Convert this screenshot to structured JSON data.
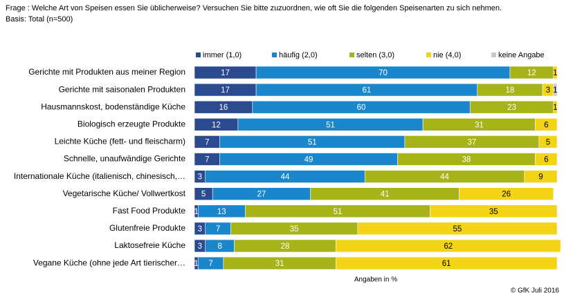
{
  "chart_data": {
    "type": "bar",
    "orientation": "horizontal",
    "stacked": true,
    "title": "Frage : Welche Art von Speisen essen Sie üblicherweise? Versuchen Sie bitte zuzuordnen, wie oft Sie die folgenden Speisenarten zu sich nehmen.",
    "subtitle": "Basis: Total (n=500)",
    "x_label": "Angaben in %",
    "source": "© GfK Juli 2016",
    "xlim": [
      0,
      100
    ],
    "categories": [
      "Gerichte mit Produkten aus meiner Region",
      "Gerichte mit saisonalen Produkten",
      "Hausmannskost, bodenständige Küche",
      "Biologisch erzeugte Produkte",
      "Leichte Küche (fett- und fleischarm)",
      "Schnelle, unaufwändige Gerichte",
      "Internationale Küche (italienisch, chinesisch,…",
      "Vegetarische Küche/ Vollwertkost",
      "Fast Food Produkte",
      "Glutenfreie Produkte",
      "Laktosefreie Küche",
      "Vegane Küche (ohne jede Art tierischer…"
    ],
    "series": [
      {
        "name": "immer (1,0)",
        "color": "#2b4a8f",
        "values": [
          17,
          17,
          16,
          12,
          7,
          7,
          3,
          5,
          1,
          3,
          3,
          1
        ]
      },
      {
        "name": "häufig (2,0)",
        "color": "#1a87cc",
        "values": [
          70,
          61,
          60,
          51,
          51,
          49,
          44,
          27,
          13,
          7,
          8,
          7
        ]
      },
      {
        "name": "selten (3,0)",
        "color": "#a6b41a",
        "values": [
          12,
          18,
          23,
          31,
          37,
          38,
          44,
          41,
          51,
          35,
          28,
          31
        ]
      },
      {
        "name": "nie (4,0)",
        "color": "#f3d417",
        "values": [
          1,
          3,
          1,
          6,
          5,
          6,
          9,
          26,
          35,
          55,
          62,
          61
        ]
      },
      {
        "name": "keine Angabe",
        "color": "#c8c8c8",
        "values": [
          null,
          1,
          null,
          null,
          null,
          null,
          null,
          null,
          null,
          null,
          null,
          null
        ]
      }
    ]
  }
}
